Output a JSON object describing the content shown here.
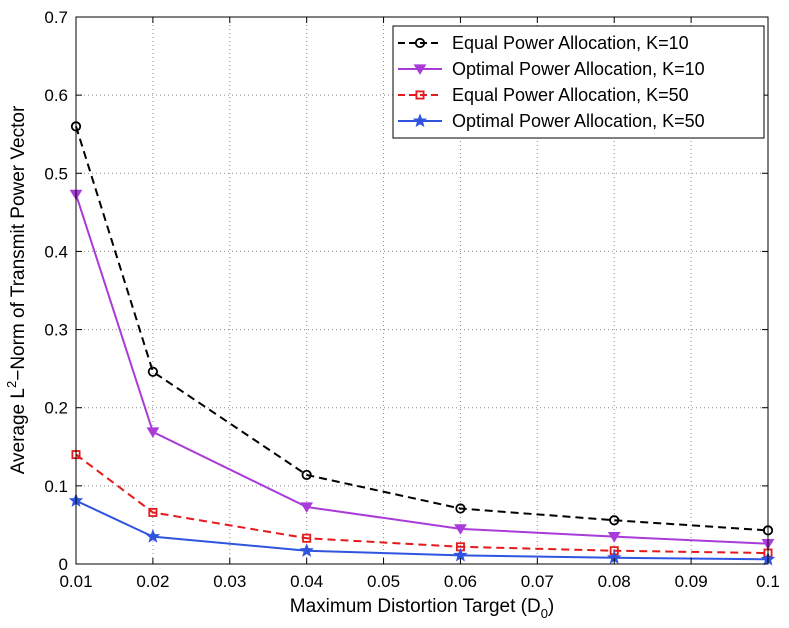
{
  "chart_data": {
    "type": "line",
    "title": "",
    "xlabel": {
      "main": "Maximum Distortion Target (D",
      "sub": "0",
      "close": ")"
    },
    "ylabel": {
      "pre": "Average L",
      "sup": "2",
      "post": "−Norm of Transmit Power Vector"
    },
    "xlim": [
      0.01,
      0.1
    ],
    "ylim": [
      0,
      0.7
    ],
    "xticks": [
      0.01,
      0.02,
      0.03,
      0.04,
      0.05,
      0.06,
      0.07,
      0.08,
      0.09,
      0.1
    ],
    "xtick_labels": [
      "0.01",
      "0.02",
      "0.03",
      "0.04",
      "0.05",
      "0.06",
      "0.07",
      "0.08",
      "0.09",
      "0.1"
    ],
    "yticks": [
      0,
      0.1,
      0.2,
      0.3,
      0.4,
      0.5,
      0.6,
      0.7
    ],
    "ytick_labels": [
      "0",
      "0.1",
      "0.2",
      "0.3",
      "0.4",
      "0.5",
      "0.6",
      "0.7"
    ],
    "grid": true,
    "legend_position": "top-right",
    "x": [
      0.01,
      0.02,
      0.04,
      0.06,
      0.08,
      0.1
    ],
    "series": [
      {
        "name": "Equal Power Allocation, K=10",
        "color": "#000000",
        "dash": "dashed",
        "marker": "circle",
        "values": [
          0.56,
          0.246,
          0.114,
          0.071,
          0.056,
          0.043
        ]
      },
      {
        "name": "Optimal Power Allocation, K=10",
        "color": "#a93bd9",
        "dash": "solid",
        "marker": "triangle-down",
        "values": [
          0.473,
          0.169,
          0.073,
          0.045,
          0.035,
          0.026
        ]
      },
      {
        "name": "Equal Power Allocation, K=50",
        "color": "#e41a1c",
        "dash": "dashed",
        "marker": "square",
        "values": [
          0.14,
          0.066,
          0.033,
          0.022,
          0.017,
          0.014
        ]
      },
      {
        "name": "Optimal Power Allocation, K=50",
        "color": "#2f55e0",
        "dash": "solid",
        "marker": "star",
        "values": [
          0.081,
          0.035,
          0.017,
          0.011,
          0.008,
          0.006
        ]
      }
    ]
  }
}
